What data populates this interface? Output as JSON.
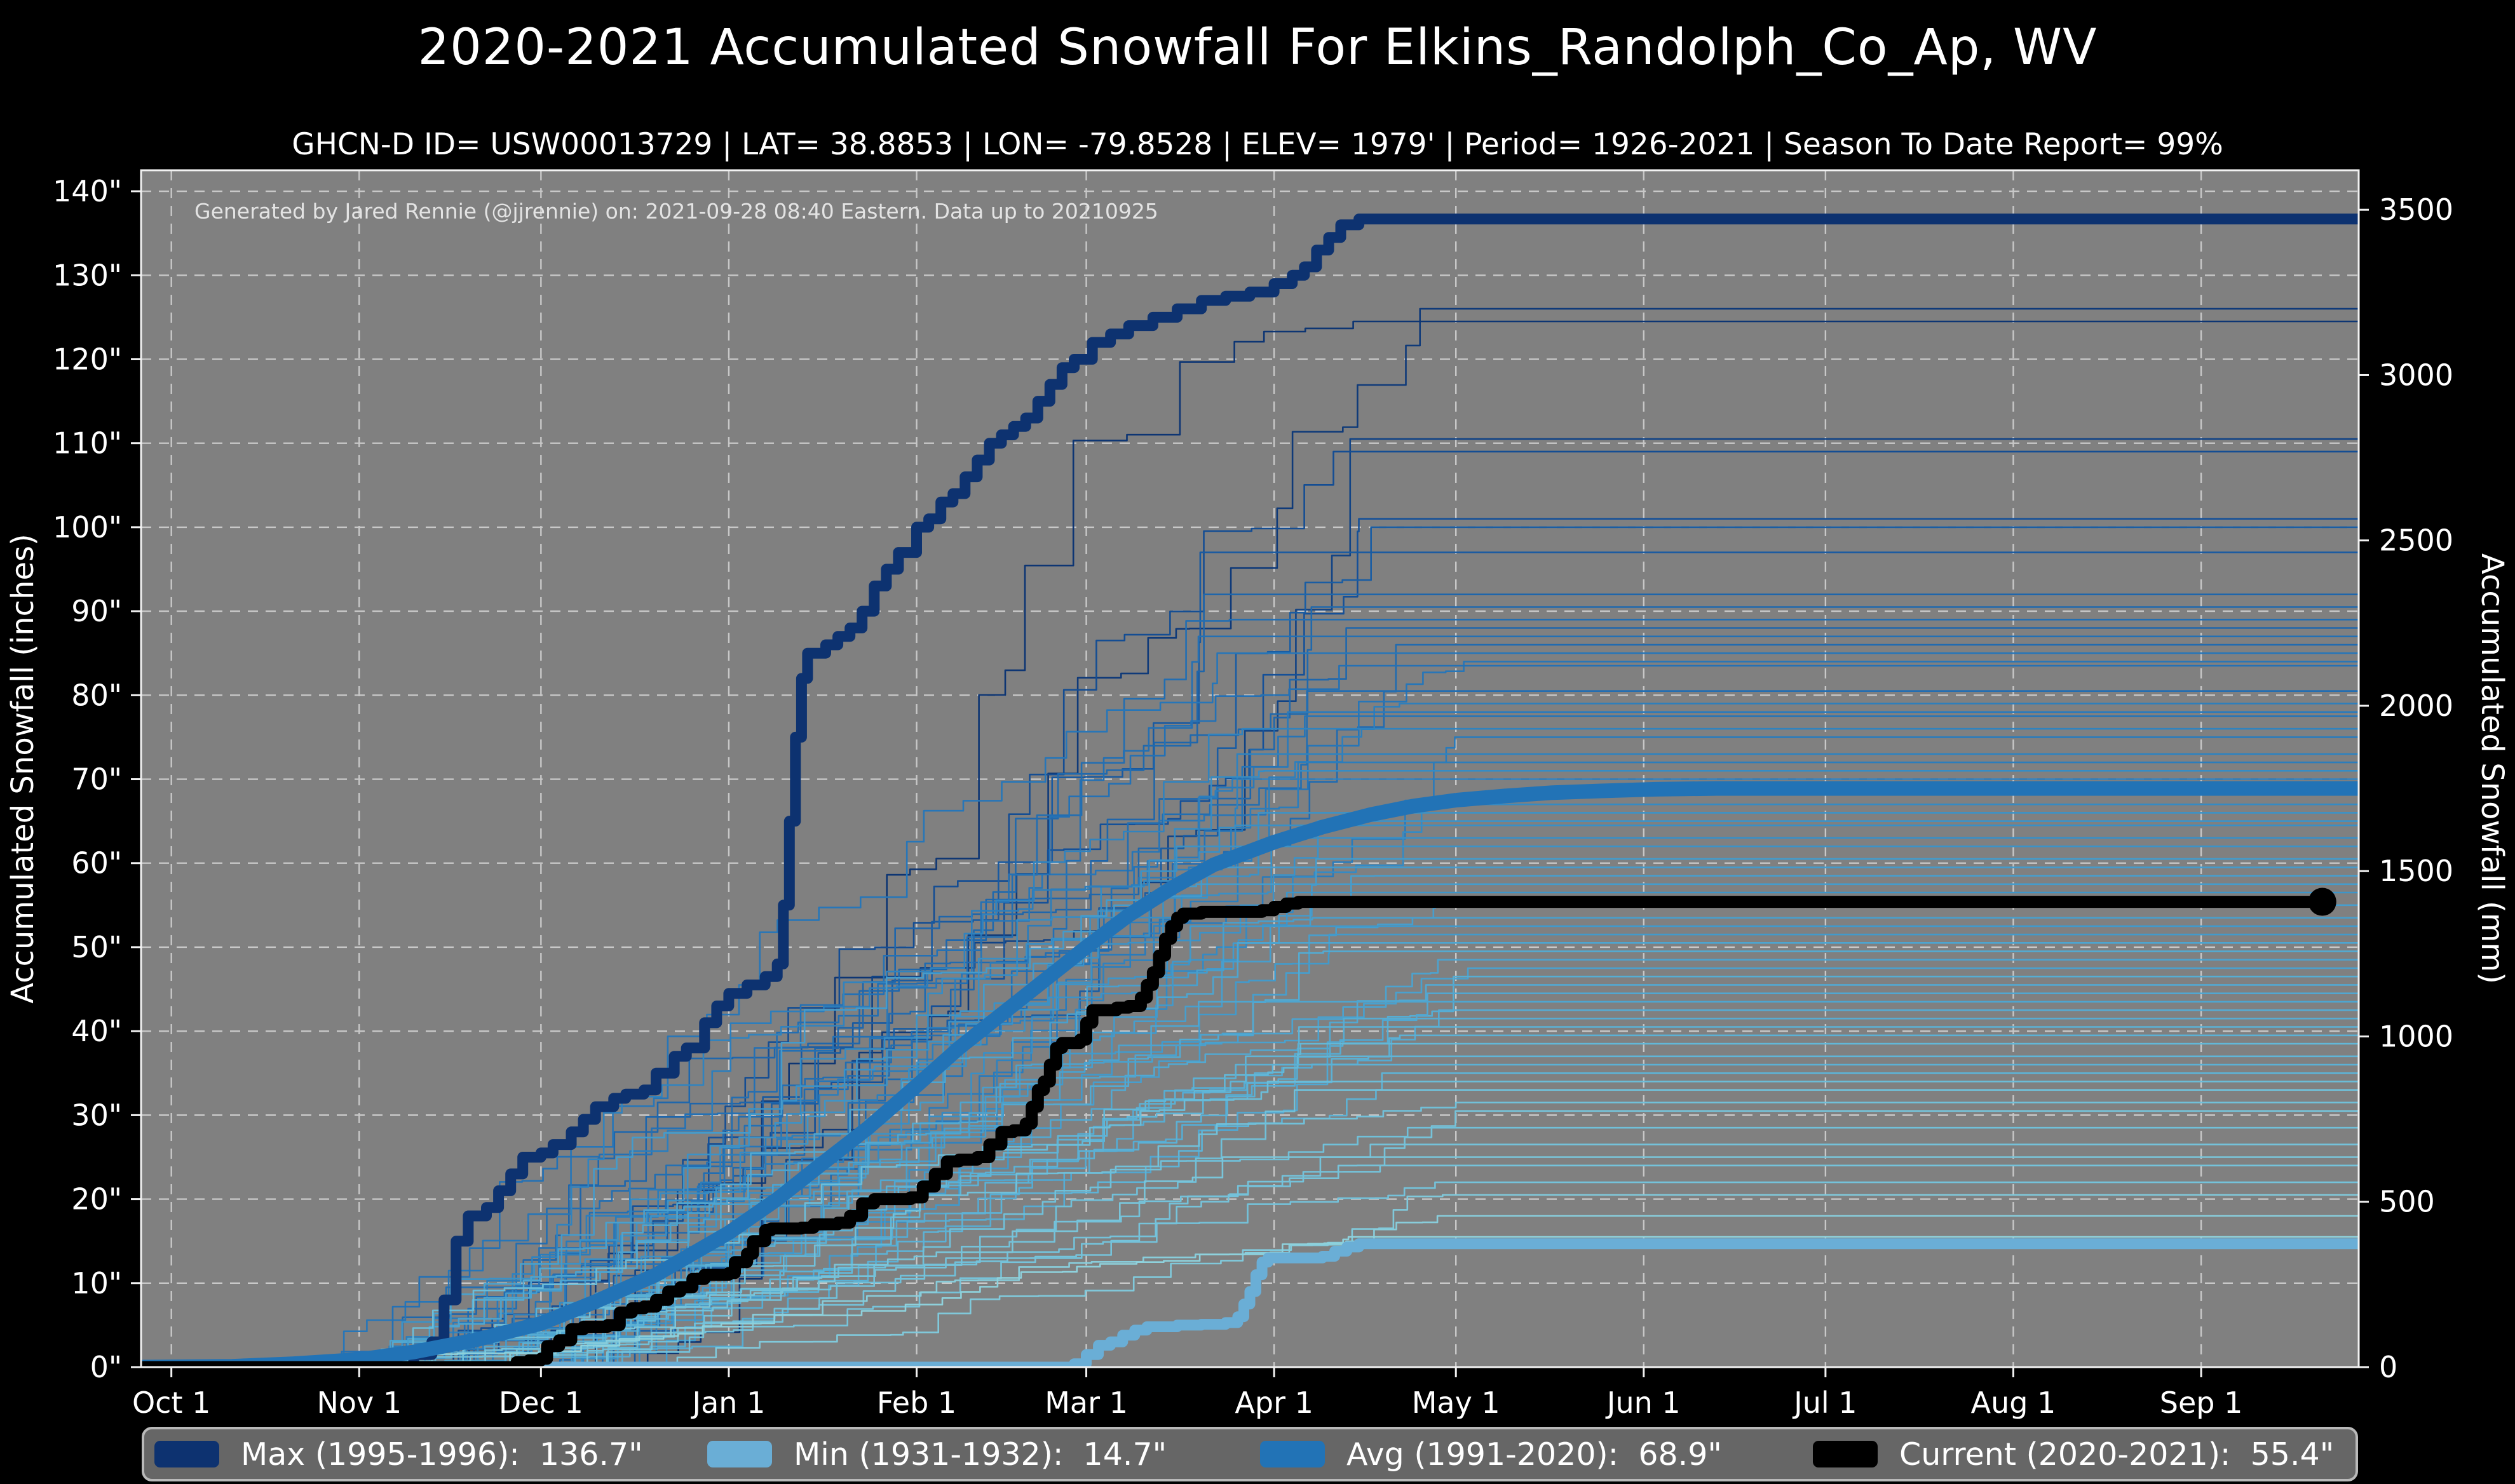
{
  "title": "2020-2021 Accumulated Snowfall For Elkins_Randolph_Co_Ap, WV",
  "subtitle": "GHCN-D ID= USW00013729 | LAT= 38.8853 | LON= -79.8528 | ELEV= 1979' | Period= 1926-2021 | Season To Date Report= 99%",
  "watermark": "Generated by Jared Rennie (@jjrennie) on: 2021-09-28 08:40 Eastern. Data up to 20210925",
  "colors": {
    "page_bg": "#000000",
    "plot_bg": "#808080",
    "grid": "#c8c8c8",
    "spine": "#f2f2f2",
    "text": "#ffffff",
    "watermark_text": "#e3e3e3",
    "legend_bg": "#666666",
    "legend_border": "#b9b9b9",
    "max_line": "#0d3270",
    "min_line": "#6aaed6",
    "avg_line": "#2273b6",
    "current_line": "#000000",
    "season_palette": [
      "#8ed1dc",
      "#62b8d8",
      "#3d95c9",
      "#2574b7",
      "#15529a",
      "#0d3471"
    ]
  },
  "legend": {
    "items": [
      {
        "label": "Max (1995-1996):",
        "value": "136.7\"",
        "color": "#0d3270"
      },
      {
        "label": "Min (1931-1932):",
        "value": "14.7\"",
        "color": "#6aaed6"
      },
      {
        "label": "Avg (1991-2020):",
        "value": "68.9\"",
        "color": "#2273b6"
      },
      {
        "label": "Current (2020-2021):",
        "value": "55.4\"",
        "color": "#000000"
      }
    ]
  },
  "axes": {
    "left_label": "Accumulated Snowfall (inches)",
    "right_label": "Accumulated Snowfall (mm)",
    "x_ticks": [
      {
        "day": 0,
        "label": "Oct 1"
      },
      {
        "day": 31,
        "label": "Nov 1"
      },
      {
        "day": 61,
        "label": "Dec 1"
      },
      {
        "day": 92,
        "label": "Jan 1"
      },
      {
        "day": 123,
        "label": "Feb 1"
      },
      {
        "day": 151,
        "label": "Mar 1"
      },
      {
        "day": 182,
        "label": "Apr 1"
      },
      {
        "day": 212,
        "label": "May 1"
      },
      {
        "day": 243,
        "label": "Jun 1"
      },
      {
        "day": 273,
        "label": "Jul 1"
      },
      {
        "day": 304,
        "label": "Aug 1"
      },
      {
        "day": 335,
        "label": "Sep 1"
      }
    ],
    "y_left_ticks": [
      {
        "value": 0,
        "label": "0\""
      },
      {
        "value": 10,
        "label": "10\""
      },
      {
        "value": 20,
        "label": "20\""
      },
      {
        "value": 30,
        "label": "30\""
      },
      {
        "value": 40,
        "label": "40\""
      },
      {
        "value": 50,
        "label": "50\""
      },
      {
        "value": 60,
        "label": "60\""
      },
      {
        "value": 70,
        "label": "70\""
      },
      {
        "value": 80,
        "label": "80\""
      },
      {
        "value": 90,
        "label": "90\""
      },
      {
        "value": 100,
        "label": "100\""
      },
      {
        "value": 110,
        "label": "110\""
      },
      {
        "value": 120,
        "label": "120\""
      },
      {
        "value": 130,
        "label": "130\""
      },
      {
        "value": 140,
        "label": "140\""
      }
    ],
    "y_right_ticks_mm": [
      0,
      500,
      1000,
      1500,
      2000,
      2500,
      3000,
      3500
    ]
  },
  "chart_data": {
    "type": "line",
    "x_unit": "days since Oct 1",
    "y_unit_left": "inches",
    "y_unit_right": "mm (mm = inches * 25.4)",
    "xlim_days": [
      -5,
      361
    ],
    "ylim_inches": [
      0,
      142.5
    ],
    "grid": "dashed, both axes, every month / every 10 inches",
    "legend_position": "bottom bar",
    "series": [
      {
        "name": "Max (1995-1996)",
        "final": 136.7,
        "style": "step",
        "width": 17,
        "points": [
          [
            -5,
            0
          ],
          [
            35,
            0
          ],
          [
            40,
            1.5
          ],
          [
            43,
            3
          ],
          [
            45,
            8
          ],
          [
            47,
            15
          ],
          [
            49,
            18
          ],
          [
            52,
            19
          ],
          [
            54,
            21
          ],
          [
            56,
            23
          ],
          [
            58,
            25
          ],
          [
            61,
            25.5
          ],
          [
            63,
            26.5
          ],
          [
            66,
            28
          ],
          [
            68,
            29.5
          ],
          [
            70,
            31
          ],
          [
            73,
            32
          ],
          [
            75,
            32.5
          ],
          [
            78,
            33
          ],
          [
            80,
            35
          ],
          [
            83,
            37
          ],
          [
            85,
            38
          ],
          [
            88,
            41
          ],
          [
            90,
            43
          ],
          [
            92,
            44.5
          ],
          [
            95,
            45.5
          ],
          [
            98,
            46.5
          ],
          [
            100,
            48
          ],
          [
            101,
            55
          ],
          [
            102,
            65
          ],
          [
            103,
            75
          ],
          [
            104,
            82
          ],
          [
            105,
            85
          ],
          [
            108,
            86
          ],
          [
            110,
            87
          ],
          [
            112,
            88
          ],
          [
            114,
            90
          ],
          [
            116,
            93
          ],
          [
            118,
            95
          ],
          [
            120,
            97
          ],
          [
            123,
            100
          ],
          [
            125,
            101
          ],
          [
            127,
            103
          ],
          [
            129,
            104
          ],
          [
            131,
            106
          ],
          [
            133,
            108
          ],
          [
            135,
            110
          ],
          [
            137,
            111
          ],
          [
            139,
            112
          ],
          [
            141,
            113
          ],
          [
            143,
            115
          ],
          [
            145,
            117
          ],
          [
            147,
            119
          ],
          [
            149,
            120
          ],
          [
            152,
            122
          ],
          [
            155,
            123
          ],
          [
            158,
            124
          ],
          [
            162,
            125
          ],
          [
            166,
            126
          ],
          [
            170,
            127
          ],
          [
            174,
            127.5
          ],
          [
            178,
            128
          ],
          [
            182,
            129
          ],
          [
            185,
            130
          ],
          [
            187,
            131
          ],
          [
            189,
            133
          ],
          [
            191,
            134.5
          ],
          [
            193,
            136
          ],
          [
            196,
            136.7
          ],
          [
            364,
            136.7
          ]
        ]
      },
      {
        "name": "Min (1931-1932)",
        "final": 14.7,
        "style": "step",
        "width": 17,
        "points": [
          [
            -5,
            0
          ],
          [
            147,
            0
          ],
          [
            149,
            0.4
          ],
          [
            151,
            1.5
          ],
          [
            153,
            2.6
          ],
          [
            155,
            3
          ],
          [
            157,
            3.8
          ],
          [
            159,
            4.4
          ],
          [
            161,
            4.8
          ],
          [
            166,
            5
          ],
          [
            170,
            5.1
          ],
          [
            174,
            5.3
          ],
          [
            176,
            6
          ],
          [
            177,
            7.5
          ],
          [
            178,
            9
          ],
          [
            179,
            11
          ],
          [
            180,
            12.5
          ],
          [
            181,
            13
          ],
          [
            190,
            13.2
          ],
          [
            192,
            13.8
          ],
          [
            194,
            14.3
          ],
          [
            196,
            14.7
          ],
          [
            364,
            14.7
          ]
        ]
      },
      {
        "name": "Avg (1991-2020)",
        "final": 68.9,
        "style": "smooth",
        "width": 23,
        "points": [
          [
            -5,
            0
          ],
          [
            10,
            0.1
          ],
          [
            20,
            0.4
          ],
          [
            31,
            0.9
          ],
          [
            40,
            1.8
          ],
          [
            50,
            3.2
          ],
          [
            61,
            5.2
          ],
          [
            70,
            7.8
          ],
          [
            80,
            11
          ],
          [
            92,
            16
          ],
          [
            100,
            20
          ],
          [
            107,
            24
          ],
          [
            115,
            28.5
          ],
          [
            123,
            33.5
          ],
          [
            130,
            38
          ],
          [
            137,
            42
          ],
          [
            144,
            46
          ],
          [
            151,
            50
          ],
          [
            158,
            53.8
          ],
          [
            165,
            57
          ],
          [
            172,
            59.8
          ],
          [
            182,
            62.5
          ],
          [
            190,
            64.3
          ],
          [
            198,
            65.8
          ],
          [
            205,
            66.8
          ],
          [
            212,
            67.5
          ],
          [
            220,
            68
          ],
          [
            228,
            68.4
          ],
          [
            236,
            68.6
          ],
          [
            245,
            68.8
          ],
          [
            255,
            68.9
          ],
          [
            364,
            68.9
          ]
        ]
      },
      {
        "name": "Current (2020-2021)",
        "final": 55.4,
        "style": "step",
        "width": 19,
        "end_marker_day": 355,
        "points": [
          [
            -5,
            0
          ],
          [
            55,
            0
          ],
          [
            57,
            0.6
          ],
          [
            59,
            0.8
          ],
          [
            61,
            1
          ],
          [
            62,
            2.5
          ],
          [
            64,
            3.2
          ],
          [
            66,
            4.5
          ],
          [
            68,
            4.8
          ],
          [
            72,
            5
          ],
          [
            74,
            6.5
          ],
          [
            76,
            7
          ],
          [
            78,
            7.2
          ],
          [
            80,
            8
          ],
          [
            82,
            9
          ],
          [
            84,
            9.5
          ],
          [
            86,
            10.5
          ],
          [
            88,
            11
          ],
          [
            92,
            11.2
          ],
          [
            93,
            12.5
          ],
          [
            95,
            13.5
          ],
          [
            96,
            15
          ],
          [
            98,
            16.3
          ],
          [
            99,
            16.5
          ],
          [
            104,
            16.6
          ],
          [
            106,
            17
          ],
          [
            110,
            17.2
          ],
          [
            112,
            18
          ],
          [
            114,
            19.5
          ],
          [
            116,
            20
          ],
          [
            122,
            20.2
          ],
          [
            124,
            21.5
          ],
          [
            126,
            23
          ],
          [
            128,
            24.5
          ],
          [
            130,
            24.7
          ],
          [
            133,
            25
          ],
          [
            135,
            26.5
          ],
          [
            137,
            28
          ],
          [
            139,
            28.2
          ],
          [
            141,
            29
          ],
          [
            142,
            31
          ],
          [
            143,
            33
          ],
          [
            144,
            34
          ],
          [
            145,
            36
          ],
          [
            146,
            38
          ],
          [
            147,
            38.6
          ],
          [
            150,
            39
          ],
          [
            151,
            41
          ],
          [
            152,
            42.5
          ],
          [
            156,
            42.8
          ],
          [
            158,
            43
          ],
          [
            160,
            44
          ],
          [
            161,
            45.5
          ],
          [
            162,
            47
          ],
          [
            163,
            49
          ],
          [
            164,
            51
          ],
          [
            165,
            52.5
          ],
          [
            166,
            53.5
          ],
          [
            167,
            54
          ],
          [
            170,
            54.2
          ],
          [
            180,
            54.4
          ],
          [
            182,
            54.8
          ],
          [
            184,
            55.2
          ],
          [
            186,
            55.4
          ],
          [
            355,
            55.4
          ]
        ]
      }
    ],
    "background_seasons": {
      "description": "thin historical season traces 1926-2021, colored light (low total) to dark navy (high total)",
      "final_values_in": [
        126,
        124.5,
        110.5,
        109,
        101,
        100,
        97,
        92,
        90.5,
        89,
        88,
        87,
        86,
        85,
        84,
        83.5,
        80.5,
        79,
        78,
        77.5,
        76,
        75,
        73,
        72,
        71,
        70,
        67,
        66,
        65,
        64.5,
        63,
        62,
        60.5,
        59.5,
        58.5,
        57.5,
        56.5,
        55,
        53.5,
        52.5,
        51.5,
        50.5,
        49.5,
        48.5,
        47.5,
        46.5,
        45.5,
        44.5,
        43.5,
        42.5,
        41.5,
        40.5,
        39.5,
        38.5,
        37,
        36,
        35,
        34,
        33,
        31.5,
        30.5,
        28.5,
        26.5,
        25,
        24,
        22,
        20.5,
        18,
        15.5
      ]
    }
  }
}
